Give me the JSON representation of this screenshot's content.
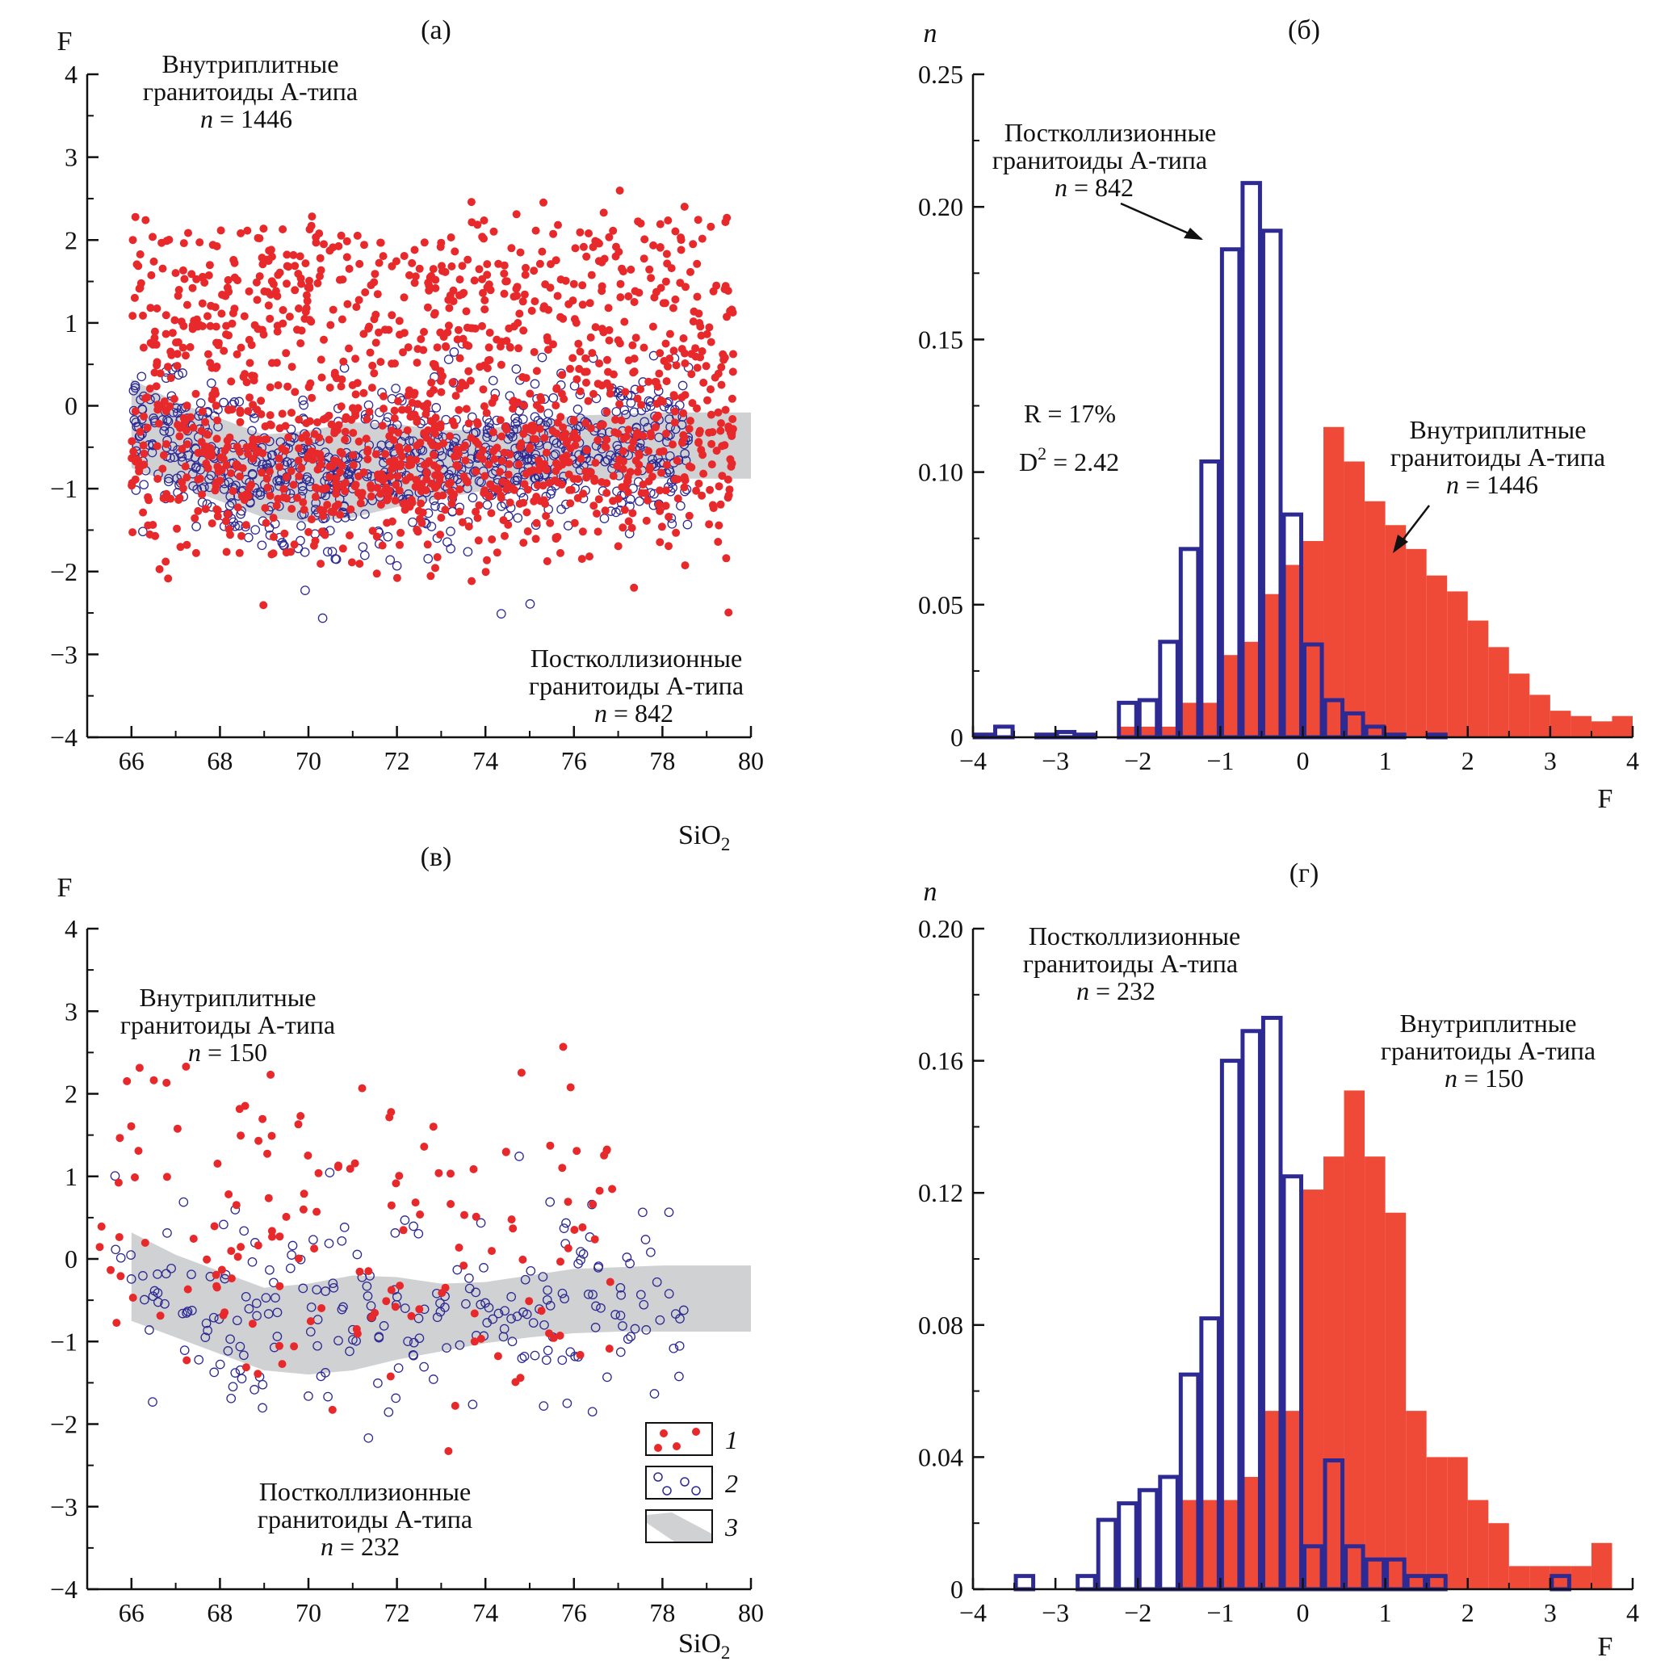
{
  "colors": {
    "intraplate": "#e8292b",
    "hist_red": "#ef4a38",
    "postcollision": "#2e2a93",
    "band": "#cfd1d3",
    "axis": "#111111"
  },
  "legend": {
    "items": [
      "1",
      "2",
      "3"
    ]
  },
  "chart_data": [
    {
      "type": "scatter",
      "panel": "(а)",
      "xlabel": "SiO2",
      "ylabel": "F",
      "xlim": [
        65,
        80
      ],
      "ylim": [
        -4,
        4
      ],
      "xticks": [
        "66",
        "68",
        "70",
        "72",
        "74",
        "76",
        "78",
        "80"
      ],
      "yticks": [
        "−4",
        "−3",
        "−2",
        "−1",
        "0",
        "1",
        "2",
        "3",
        "4"
      ],
      "band": {
        "x": [
          66,
          67,
          68,
          69,
          70,
          71,
          72,
          73,
          74,
          75,
          76,
          77,
          78,
          80
        ],
        "upper": [
          0.32,
          0.05,
          -0.15,
          -0.35,
          -0.3,
          -0.2,
          -0.22,
          -0.3,
          -0.28,
          -0.2,
          -0.12,
          -0.1,
          -0.08,
          -0.08
        ],
        "lower": [
          -0.75,
          -0.95,
          -1.15,
          -1.35,
          -1.4,
          -1.35,
          -1.22,
          -1.12,
          -1.02,
          -0.95,
          -0.9,
          -0.88,
          -0.88,
          -0.88
        ]
      },
      "series": [
        {
          "name": "Внутриплитные гранитоиды А-типа",
          "n": 1446,
          "marker": "filled",
          "x_range": [
            66,
            79.6
          ],
          "center": 0.45,
          "spread": 1.1
        },
        {
          "name": "Постколлизионные гранитоиды А-типа",
          "n": 842,
          "marker": "open",
          "x_range": [
            66,
            78.6
          ],
          "center": -0.95,
          "spread": 0.45
        }
      ],
      "annotations": [
        {
          "lines": [
            "Внутриплитные",
            "гранитоиды А-типа"
          ],
          "n_prefix": "n",
          "n_text": " = 1446",
          "pos": "top-left"
        },
        {
          "lines": [
            "Постколлизионные",
            "гранитоиды А-типа"
          ],
          "n_prefix": "n",
          "n_text": " = 842",
          "pos": "bottom-right"
        }
      ]
    },
    {
      "type": "bar",
      "panel": "(б)",
      "xlabel": "F",
      "ylabel": "n",
      "xlim": [
        -4,
        4
      ],
      "ylim": [
        0,
        0.25
      ],
      "xticks": [
        "−4",
        "−3",
        "−2",
        "−1",
        "0",
        "1",
        "2",
        "3",
        "4"
      ],
      "yticks": [
        "0",
        "0.05",
        "0.10",
        "0.15",
        "0.20",
        "0.25"
      ],
      "bin_width": 0.25,
      "series": [
        {
          "name": "Внутриплитные гранитоиды А-типа",
          "n": 1446,
          "style": "filled",
          "bins": [
            [
              -2.25,
              0.004
            ],
            [
              -2.0,
              0.004
            ],
            [
              -1.75,
              0.004
            ],
            [
              -1.5,
              0.013
            ],
            [
              -1.25,
              0.013
            ],
            [
              -1.0,
              0.031
            ],
            [
              -0.75,
              0.036
            ],
            [
              -0.5,
              0.054
            ],
            [
              -0.25,
              0.065
            ],
            [
              0.0,
              0.074
            ],
            [
              0.25,
              0.117
            ],
            [
              0.5,
              0.104
            ],
            [
              0.75,
              0.089
            ],
            [
              1.0,
              0.08
            ],
            [
              1.25,
              0.071
            ],
            [
              1.5,
              0.061
            ],
            [
              1.75,
              0.055
            ],
            [
              2.0,
              0.044
            ],
            [
              2.25,
              0.034
            ],
            [
              2.5,
              0.024
            ],
            [
              2.75,
              0.016
            ],
            [
              3.0,
              0.01
            ],
            [
              3.25,
              0.008
            ],
            [
              3.5,
              0.006
            ],
            [
              3.75,
              0.008
            ]
          ]
        },
        {
          "name": "Постколлизионные гранитоиды А-типа",
          "n": 842,
          "style": "outline",
          "bins": [
            [
              -4.0,
              0.001
            ],
            [
              -3.75,
              0.004
            ],
            [
              -3.25,
              0.001
            ],
            [
              -3.0,
              0.002
            ],
            [
              -2.75,
              0.001
            ],
            [
              -2.25,
              0.013
            ],
            [
              -2.0,
              0.014
            ],
            [
              -1.75,
              0.036
            ],
            [
              -1.5,
              0.071
            ],
            [
              -1.25,
              0.104
            ],
            [
              -1.0,
              0.184
            ],
            [
              -0.75,
              0.209
            ],
            [
              -0.5,
              0.191
            ],
            [
              -0.25,
              0.084
            ],
            [
              0.0,
              0.035
            ],
            [
              0.25,
              0.014
            ],
            [
              0.5,
              0.009
            ],
            [
              0.75,
              0.004
            ],
            [
              1.0,
              0.001
            ],
            [
              1.5,
              0.001
            ]
          ]
        }
      ],
      "stats": {
        "R": "R = 17%",
        "D2_prefix": "D",
        "D2_sup": "2",
        "D2_value": " = 2.42"
      },
      "annotations": [
        {
          "lines": [
            "Постколлизионные",
            "гранитоиды А-типа"
          ],
          "n_prefix": "n",
          "n_text": " = 842",
          "pos": "top-left"
        },
        {
          "lines": [
            "Внутриплитные",
            "гранитоиды А-типа"
          ],
          "n_prefix": "n",
          "n_text": " = 1446",
          "pos": "middle-right"
        }
      ]
    },
    {
      "type": "scatter",
      "panel": "(в)",
      "xlabel": "SiO2",
      "ylabel": "F",
      "xlim": [
        65,
        80
      ],
      "ylim": [
        -4,
        4
      ],
      "xticks": [
        "66",
        "68",
        "70",
        "72",
        "74",
        "76",
        "78",
        "80"
      ],
      "yticks": [
        "−4",
        "−3",
        "−2",
        "−1",
        "0",
        "1",
        "2",
        "3",
        "4"
      ],
      "band": {
        "x": [
          66,
          67,
          68,
          69,
          70,
          71,
          72,
          73,
          74,
          75,
          76,
          77,
          78,
          80
        ],
        "upper": [
          0.32,
          0.05,
          -0.15,
          -0.35,
          -0.3,
          -0.2,
          -0.22,
          -0.3,
          -0.28,
          -0.2,
          -0.12,
          -0.1,
          -0.08,
          -0.08
        ],
        "lower": [
          -0.75,
          -0.95,
          -1.15,
          -1.35,
          -1.4,
          -1.35,
          -1.22,
          -1.12,
          -1.02,
          -0.95,
          -0.9,
          -0.88,
          -0.88,
          -0.88
        ]
      },
      "series": [
        {
          "name": "Внутриплитные гранитоиды А-типа",
          "n": 150,
          "marker": "filled",
          "x_range": [
            65.2,
            77
          ],
          "center": 0.6,
          "spread": 0.9
        },
        {
          "name": "Постколлизионные гранитоиды А-типа",
          "n": 232,
          "marker": "open",
          "x_range": [
            65.5,
            78.5
          ],
          "center": -0.7,
          "spread": 0.6
        }
      ],
      "annotations": [
        {
          "lines": [
            "Внутриплитные",
            "гранитоиды А-типа"
          ],
          "n_prefix": "n",
          "n_text": " = 150",
          "pos": "top-left"
        },
        {
          "lines": [
            "Постколлизионные",
            "гранитоиды А-типа"
          ],
          "n_prefix": "n",
          "n_text": " = 232",
          "pos": "bottom-left"
        }
      ]
    },
    {
      "type": "bar",
      "panel": "(г)",
      "xlabel": "F",
      "ylabel": "n",
      "xlim": [
        -4,
        4
      ],
      "ylim": [
        0,
        0.2
      ],
      "xticks": [
        "−4",
        "−3",
        "−2",
        "−1",
        "0",
        "1",
        "2",
        "3",
        "4"
      ],
      "yticks": [
        "0",
        "0.04",
        "0.08",
        "0.12",
        "0.16",
        "0.20"
      ],
      "bin_width": 0.25,
      "series": [
        {
          "name": "Внутриплитные гранитоиды А-типа",
          "n": 150,
          "style": "filled",
          "bins": [
            [
              -1.5,
              0.027
            ],
            [
              -1.25,
              0.027
            ],
            [
              -1.0,
              0.027
            ],
            [
              -0.75,
              0.034
            ],
            [
              -0.5,
              0.054
            ],
            [
              -0.25,
              0.054
            ],
            [
              0.0,
              0.121
            ],
            [
              0.25,
              0.131
            ],
            [
              0.5,
              0.151
            ],
            [
              0.75,
              0.131
            ],
            [
              1.0,
              0.114
            ],
            [
              1.25,
              0.054
            ],
            [
              1.5,
              0.04
            ],
            [
              1.75,
              0.04
            ],
            [
              2.0,
              0.027
            ],
            [
              2.25,
              0.02
            ],
            [
              2.5,
              0.007
            ],
            [
              2.75,
              0.007
            ],
            [
              3.0,
              0.007
            ],
            [
              3.25,
              0.007
            ],
            [
              3.5,
              0.014
            ]
          ]
        },
        {
          "name": "Постколлизионные гранитоиды А-типа",
          "n": 232,
          "style": "outline",
          "bins": [
            [
              -3.5,
              0.004
            ],
            [
              -2.75,
              0.004
            ],
            [
              -2.5,
              0.021
            ],
            [
              -2.25,
              0.026
            ],
            [
              -2.0,
              0.03
            ],
            [
              -1.75,
              0.034
            ],
            [
              -1.5,
              0.065
            ],
            [
              -1.25,
              0.082
            ],
            [
              -1.0,
              0.16
            ],
            [
              -0.75,
              0.169
            ],
            [
              -0.5,
              0.173
            ],
            [
              -0.25,
              0.125
            ],
            [
              0.0,
              0.013
            ],
            [
              0.25,
              0.039
            ],
            [
              0.5,
              0.013
            ],
            [
              0.75,
              0.009
            ],
            [
              1.0,
              0.009
            ],
            [
              1.25,
              0.004
            ],
            [
              1.5,
              0.004
            ],
            [
              3.0,
              0.004
            ]
          ]
        }
      ],
      "annotations": [
        {
          "lines": [
            "Постколлизионные",
            "гранитоиды А-типа"
          ],
          "n_prefix": "n",
          "n_text": " = 232",
          "pos": "top-left"
        },
        {
          "lines": [
            "Внутриплитные",
            "гранитоиды А-типа"
          ],
          "n_prefix": "n",
          "n_text": " = 150",
          "pos": "top-right"
        }
      ]
    }
  ]
}
